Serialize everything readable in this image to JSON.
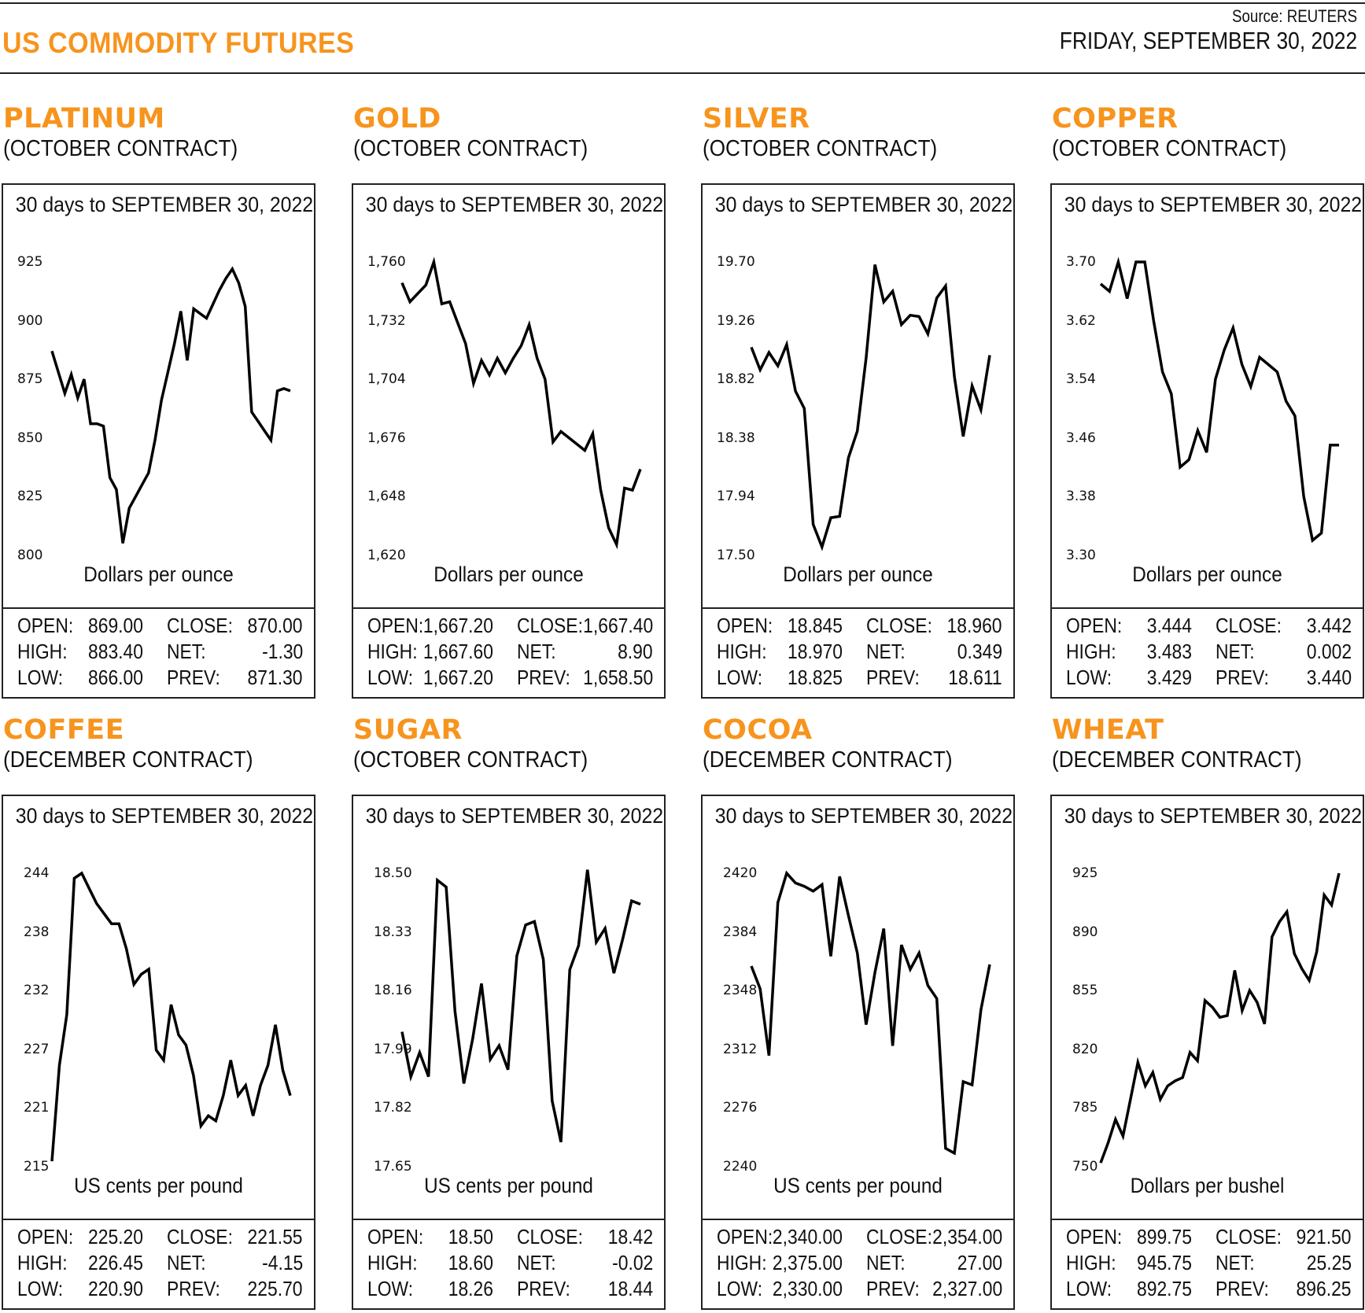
{
  "header": {
    "title": "US COMMODITY FUTURES",
    "source": "Source: REUTERS",
    "date": "FRIDAY, SEPTEMBER 30, 2022"
  },
  "colors": {
    "accent": "#f7941d",
    "line": "#000000",
    "border": "#222222"
  },
  "panels": [
    {
      "name": "PLATINUM",
      "contract": "(OCTOBER CONTRACT)",
      "subtitle": "30 days to SEPTEMBER 30, 2022",
      "unit": "Dollars per ounce",
      "yticks": [
        "925",
        "900",
        "875",
        "850",
        "825",
        "800"
      ],
      "stats": {
        "open_label": "OPEN:",
        "open": "869.00",
        "close_label": "CLOSE:",
        "close": "870.00",
        "high_label": "HIGH:",
        "high": "883.40",
        "net_label": "NET:",
        "net": "-1.30",
        "low_label": "LOW:",
        "low": "866.00",
        "prev_label": "PREV:",
        "prev": "871.30"
      }
    },
    {
      "name": "GOLD",
      "contract": "(OCTOBER CONTRACT)",
      "subtitle": "30 days to SEPTEMBER 30, 2022",
      "unit": "Dollars per ounce",
      "yticks": [
        "1,760",
        "1,732",
        "1,704",
        "1,676",
        "1,648",
        "1,620"
      ],
      "stats": {
        "open_label": "OPEN:",
        "open": "1,667.20",
        "close_label": "CLOSE:",
        "close": "1,667.40",
        "high_label": "HIGH:",
        "high": "1,667.60",
        "net_label": "NET:",
        "net": "8.90",
        "low_label": "LOW:",
        "low": "1,667.20",
        "prev_label": "PREV:",
        "prev": "1,658.50"
      }
    },
    {
      "name": "SILVER",
      "contract": "(OCTOBER CONTRACT)",
      "subtitle": "30 days to SEPTEMBER 30, 2022",
      "unit": "Dollars per ounce",
      "yticks": [
        "19.70",
        "19.26",
        "18.82",
        "18.38",
        "17.94",
        "17.50"
      ],
      "stats": {
        "open_label": "OPEN:",
        "open": "18.845",
        "close_label": "CLOSE:",
        "close": "18.960",
        "high_label": "HIGH:",
        "high": "18.970",
        "net_label": "NET:",
        "net": "0.349",
        "low_label": "LOW:",
        "low": "18.825",
        "prev_label": "PREV:",
        "prev": "18.611"
      }
    },
    {
      "name": "COPPER",
      "contract": "(OCTOBER CONTRACT)",
      "subtitle": "30 days to SEPTEMBER 30, 2022",
      "unit": "Dollars per ounce",
      "yticks": [
        "3.70",
        "3.62",
        "3.54",
        "3.46",
        "3.38",
        "3.30"
      ],
      "stats": {
        "open_label": "OPEN:",
        "open": "3.444",
        "close_label": "CLOSE:",
        "close": "3.442",
        "high_label": "HIGH:",
        "high": "3.483",
        "net_label": "NET:",
        "net": "0.002",
        "low_label": "LOW:",
        "low": "3.429",
        "prev_label": "PREV:",
        "prev": "3.440"
      }
    },
    {
      "name": "COFFEE",
      "contract": "(DECEMBER CONTRACT)",
      "subtitle": "30 days to SEPTEMBER 30, 2022",
      "unit": "US cents per pound",
      "yticks": [
        "244",
        "238",
        "232",
        "227",
        "221",
        "215"
      ],
      "stats": {
        "open_label": "OPEN:",
        "open": "225.20",
        "close_label": "CLOSE:",
        "close": "221.55",
        "high_label": "HIGH:",
        "high": "226.45",
        "net_label": "NET:",
        "net": "-4.15",
        "low_label": "LOW:",
        "low": "220.90",
        "prev_label": "PREV:",
        "prev": "225.70"
      }
    },
    {
      "name": "SUGAR",
      "contract": "(OCTOBER CONTRACT)",
      "subtitle": "30 days to SEPTEMBER 30, 2022",
      "unit": "US cents per pound",
      "yticks": [
        "18.50",
        "18.33",
        "18.16",
        "17.99",
        "17.82",
        "17.65"
      ],
      "stats": {
        "open_label": "OPEN:",
        "open": "18.50",
        "close_label": "CLOSE:",
        "close": "18.42",
        "high_label": "HIGH:",
        "high": "18.60",
        "net_label": "NET:",
        "net": "-0.02",
        "low_label": "LOW:",
        "low": "18.26",
        "prev_label": "PREV:",
        "prev": "18.44"
      }
    },
    {
      "name": "COCOA",
      "contract": "(DECEMBER CONTRACT)",
      "subtitle": "30 days to SEPTEMBER 30, 2022",
      "unit": "US cents per pound",
      "yticks": [
        "2420",
        "2384",
        "2348",
        "2312",
        "2276",
        "2240"
      ],
      "stats": {
        "open_label": "OPEN:",
        "open": "2,340.00",
        "close_label": "CLOSE:",
        "close": "2,354.00",
        "high_label": "HIGH:",
        "high": "2,375.00",
        "net_label": "NET:",
        "net": "27.00",
        "low_label": "LOW:",
        "low": "2,330.00",
        "prev_label": "PREV:",
        "prev": "2,327.00"
      }
    },
    {
      "name": "WHEAT",
      "contract": "(DECEMBER CONTRACT)",
      "subtitle": "30 days to SEPTEMBER 30, 2022",
      "unit": "Dollars per bushel",
      "yticks": [
        "925",
        "890",
        "855",
        "820",
        "785",
        "750"
      ],
      "stats": {
        "open_label": "OPEN:",
        "open": "899.75",
        "close_label": "CLOSE:",
        "close": "921.50",
        "high_label": "HIGH:",
        "high": "945.75",
        "net_label": "NET:",
        "net": "25.25",
        "low_label": "LOW:",
        "low": "892.75",
        "prev_label": "PREV:",
        "prev": "896.25"
      }
    }
  ],
  "chart_data": [
    {
      "type": "line",
      "title": "PLATINUM (OCTOBER CONTRACT)",
      "subtitle": "30 days to SEPTEMBER 30, 2022",
      "xlabel": "",
      "ylabel": "Dollars per ounce",
      "ylim": [
        800,
        925
      ],
      "yticks": [
        925,
        900,
        875,
        850,
        825,
        800
      ],
      "grid": false,
      "values": [
        887,
        878,
        869,
        877,
        867,
        875,
        856,
        856,
        855,
        833,
        828,
        805,
        820,
        825,
        830,
        835,
        849,
        866,
        878,
        890,
        904,
        883,
        905,
        903,
        901,
        907,
        913,
        918,
        922,
        916,
        906,
        861,
        857,
        853,
        849,
        870,
        871,
        870
      ]
    },
    {
      "type": "line",
      "title": "GOLD (OCTOBER CONTRACT)",
      "subtitle": "30 days to SEPTEMBER 30, 2022",
      "xlabel": "",
      "ylabel": "Dollars per ounce",
      "ylim": [
        1620,
        1760
      ],
      "yticks": [
        1760,
        1732,
        1704,
        1676,
        1648,
        1620
      ],
      "grid": false,
      "values": [
        1750,
        1741,
        1745,
        1749,
        1760,
        1740,
        1741,
        1731,
        1721,
        1702,
        1713,
        1706,
        1714,
        1707,
        1714,
        1720,
        1730,
        1714,
        1704,
        1674,
        1679,
        1676,
        1673,
        1670,
        1678,
        1651,
        1633,
        1625,
        1652,
        1651,
        1661
      ]
    },
    {
      "type": "line",
      "title": "SILVER (OCTOBER CONTRACT)",
      "subtitle": "30 days to SEPTEMBER 30, 2022",
      "xlabel": "",
      "ylabel": "Dollars per ounce",
      "ylim": [
        17.5,
        19.7
      ],
      "yticks": [
        19.7,
        19.26,
        18.82,
        18.38,
        17.94,
        17.5
      ],
      "grid": false,
      "values": [
        19.06,
        18.89,
        19.02,
        18.92,
        19.08,
        18.73,
        18.6,
        17.73,
        17.56,
        17.78,
        17.79,
        18.23,
        18.43,
        18.98,
        19.68,
        19.4,
        19.48,
        19.23,
        19.3,
        19.29,
        19.16,
        19.43,
        19.52,
        18.84,
        18.39,
        18.77,
        18.59,
        19.0
      ]
    },
    {
      "type": "line",
      "title": "COPPER (OCTOBER CONTRACT)",
      "subtitle": "30 days to SEPTEMBER 30, 2022",
      "xlabel": "",
      "ylabel": "Dollars per ounce",
      "ylim": [
        3.3,
        3.7
      ],
      "yticks": [
        3.7,
        3.62,
        3.54,
        3.46,
        3.38,
        3.3
      ],
      "grid": false,
      "values": [
        3.67,
        3.66,
        3.7,
        3.65,
        3.7,
        3.7,
        3.62,
        3.55,
        3.52,
        3.42,
        3.43,
        3.47,
        3.44,
        3.54,
        3.58,
        3.61,
        3.56,
        3.53,
        3.57,
        3.56,
        3.55,
        3.51,
        3.49,
        3.38,
        3.32,
        3.33,
        3.45,
        3.45
      ]
    },
    {
      "type": "line",
      "title": "COFFEE (DECEMBER CONTRACT)",
      "subtitle": "30 days to SEPTEMBER 30, 2022",
      "xlabel": "",
      "ylabel": "US cents per pound",
      "ylim": [
        215,
        244
      ],
      "yticks": [
        244,
        238,
        232,
        227,
        221,
        215
      ],
      "grid": false,
      "values": [
        215.5,
        225,
        230,
        243.5,
        244,
        242.5,
        241,
        240,
        239,
        239,
        236.5,
        233,
        234,
        234.5,
        226.5,
        225.5,
        231,
        228,
        227,
        224,
        219,
        220,
        219.5,
        222,
        225.5,
        222,
        223,
        220,
        223,
        225,
        229,
        224.5,
        222
      ]
    },
    {
      "type": "line",
      "title": "SUGAR (OCTOBER CONTRACT)",
      "subtitle": "30 days to SEPTEMBER 30, 2022",
      "xlabel": "",
      "ylabel": "US cents per pound",
      "ylim": [
        17.65,
        18.5
      ],
      "yticks": [
        18.5,
        18.33,
        18.16,
        17.99,
        17.82,
        17.65
      ],
      "grid": false,
      "values": [
        18.04,
        17.91,
        17.98,
        17.91,
        18.48,
        18.46,
        18.1,
        17.89,
        18.02,
        18.18,
        17.96,
        18.0,
        17.93,
        18.26,
        18.35,
        18.36,
        18.25,
        17.84,
        17.72,
        18.22,
        18.29,
        18.51,
        18.3,
        18.34,
        18.21,
        18.31,
        18.42,
        18.41
      ]
    },
    {
      "type": "line",
      "title": "COCOA (DECEMBER CONTRACT)",
      "subtitle": "30 days to SEPTEMBER 30, 2022",
      "xlabel": "",
      "ylabel": "US cents per pound",
      "ylim": [
        2240,
        2420
      ],
      "yticks": [
        2420,
        2384,
        2348,
        2312,
        2276,
        2240
      ],
      "grid": false,
      "values": [
        2363,
        2349,
        2308,
        2402,
        2420,
        2414,
        2412,
        2409,
        2413,
        2369,
        2418,
        2394,
        2371,
        2327,
        2359,
        2386,
        2314,
        2376,
        2361,
        2371,
        2351,
        2343,
        2251,
        2248,
        2292,
        2290,
        2336,
        2364
      ]
    },
    {
      "type": "line",
      "title": "WHEAT (DECEMBER CONTRACT)",
      "subtitle": "30 days to SEPTEMBER 30, 2022",
      "xlabel": "",
      "ylabel": "Dollars per bushel",
      "ylim": [
        750,
        925
      ],
      "yticks": [
        925,
        890,
        855,
        820,
        785,
        750
      ],
      "grid": false,
      "values": [
        752,
        764,
        778,
        768,
        790,
        812,
        798,
        806,
        790,
        798,
        801,
        803,
        818,
        813,
        849,
        845,
        839,
        840,
        867,
        843,
        855,
        848,
        835,
        887,
        896,
        902,
        877,
        868,
        861,
        878,
        912,
        906,
        925
      ]
    }
  ]
}
